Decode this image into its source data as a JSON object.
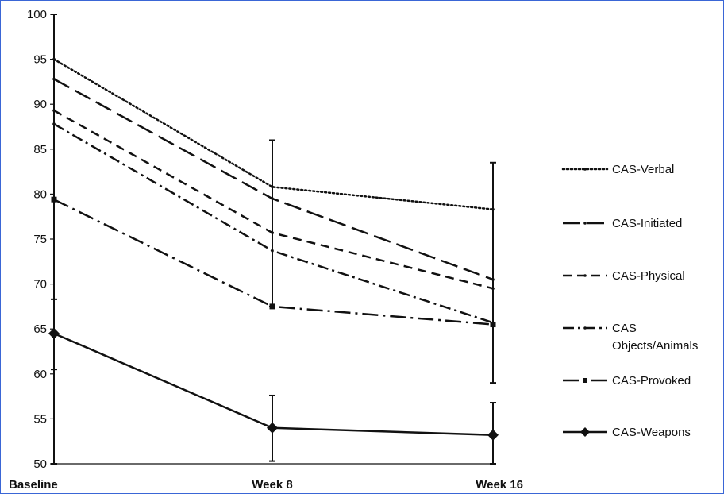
{
  "chart_data": {
    "type": "line",
    "categories": [
      "Baseline",
      "Week 8",
      "Week 16"
    ],
    "ylim": [
      50,
      100
    ],
    "yticks": [
      50,
      55,
      60,
      65,
      70,
      75,
      80,
      85,
      90,
      95,
      100
    ],
    "grid": false,
    "legend_position": "right",
    "series": [
      {
        "name": "CAS-Verbal",
        "values": [
          95,
          80.8,
          78.3
        ],
        "dash": "dotted",
        "marker": "none",
        "color": "#111111"
      },
      {
        "name": "CAS-Initiated",
        "values": [
          92.8,
          79.5,
          70.5
        ],
        "dash": "longdash",
        "marker": "none",
        "color": "#111111"
      },
      {
        "name": "CAS-Physical",
        "values": [
          89.3,
          75.7,
          69.5
        ],
        "dash": "dashed",
        "marker": "none",
        "color": "#111111"
      },
      {
        "name": "CAS\nObjects/Animals",
        "values": [
          87.8,
          73.7,
          65.7
        ],
        "dash": "dashdot",
        "marker": "none",
        "color": "#111111"
      },
      {
        "name": "CAS-Provoked",
        "values": [
          79.4,
          67.5,
          65.5
        ],
        "dash": "longdashdot",
        "marker": "square",
        "color": "#111111"
      },
      {
        "name": "CAS-Weapons",
        "values": [
          64.5,
          54,
          53.2
        ],
        "dash": "solid",
        "marker": "diamond",
        "color": "#111111"
      }
    ],
    "error_bars": [
      {
        "category": "Baseline",
        "low": 50,
        "high": 100
      },
      {
        "category": "Week 8",
        "low": 67.5,
        "high": 86
      },
      {
        "category": "Week 16",
        "low": 59,
        "high": 83.5
      },
      {
        "category": "Baseline",
        "low": 60.5,
        "high": 68.3
      },
      {
        "category": "Week 8",
        "low": 50.3,
        "high": 57.6
      },
      {
        "category": "Week 16",
        "low": 50,
        "high": 56.8
      }
    ]
  }
}
